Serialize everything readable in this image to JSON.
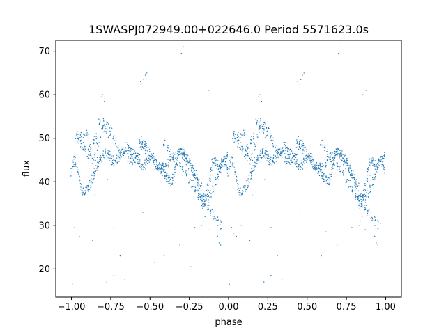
{
  "chart_data": {
    "type": "scatter",
    "title": "1SWASPJ072949.00+022646.0 Period 5571623.0s",
    "xlabel": "phase",
    "ylabel": "flux",
    "xlim": [
      -1.1,
      1.1
    ],
    "ylim": [
      13.5,
      72.5
    ],
    "xticks": [
      -1.0,
      -0.75,
      -0.5,
      -0.25,
      0.0,
      0.25,
      0.5,
      0.75,
      1.0
    ],
    "xtick_labels": [
      "−1.00",
      "−0.75",
      "−0.50",
      "−0.25",
      "0.00",
      "0.25",
      "0.50",
      "0.75",
      "1.00"
    ],
    "yticks": [
      20,
      30,
      40,
      50,
      60,
      70
    ],
    "ytick_labels": [
      "20",
      "30",
      "40",
      "50",
      "60",
      "70"
    ],
    "grid": false,
    "legend": "none",
    "marker_color": "#1f77b4",
    "series": [
      {
        "period_repeat": true,
        "x": [
          0.0,
          0.01,
          0.02,
          0.03,
          0.04,
          0.05,
          0.06,
          0.07,
          0.08,
          0.09,
          0.1,
          0.11,
          0.12,
          0.13,
          0.14,
          0.15,
          0.16,
          0.17,
          0.18,
          0.19,
          0.2,
          0.21,
          0.22,
          0.23,
          0.24,
          0.25,
          0.26,
          0.27,
          0.28,
          0.29,
          0.3,
          0.31,
          0.32,
          0.33,
          0.34,
          0.35,
          0.36,
          0.37,
          0.38,
          0.39,
          0.4,
          0.41,
          0.42,
          0.43,
          0.44,
          0.45,
          0.46,
          0.47,
          0.48,
          0.49,
          0.5,
          0.51,
          0.52,
          0.53,
          0.54,
          0.55,
          0.56,
          0.57,
          0.58,
          0.59,
          0.6,
          0.61,
          0.62,
          0.63,
          0.64,
          0.65,
          0.66,
          0.67,
          0.68,
          0.69,
          0.7,
          0.71,
          0.72,
          0.73,
          0.74,
          0.75,
          0.76,
          0.77,
          0.78,
          0.79,
          0.8,
          0.81,
          0.82,
          0.83,
          0.84,
          0.85,
          0.86,
          0.87,
          0.88,
          0.89,
          0.9,
          0.91,
          0.92,
          0.93,
          0.94,
          0.95,
          0.96,
          0.97,
          0.98,
          0.99,
          0.03,
          0.045,
          0.06,
          0.075,
          0.09,
          0.105,
          0.12,
          0.135,
          0.15,
          0.165,
          0.18,
          0.195,
          0.21,
          0.225,
          0.24,
          0.255,
          0.27,
          0.285,
          0.3,
          0.315,
          0.33,
          0.345,
          0.36,
          0.375,
          0.39,
          0.405,
          0.42,
          0.435,
          0.45,
          0.465,
          0.48,
          0.495,
          0.51,
          0.525,
          0.54,
          0.555,
          0.57,
          0.585,
          0.6,
          0.615,
          0.63,
          0.645,
          0.66,
          0.675,
          0.69,
          0.705,
          0.72,
          0.735,
          0.75,
          0.765,
          0.78,
          0.795,
          0.81,
          0.825,
          0.84,
          0.855,
          0.87,
          0.885,
          0.9,
          0.915,
          0.93,
          0.945,
          0.96,
          0.975,
          0.99,
          0.04,
          0.06,
          0.08,
          0.1,
          0.12,
          0.14,
          0.16,
          0.18,
          0.2,
          0.22,
          0.24,
          0.44,
          0.455,
          0.47,
          0.59,
          0.61,
          0.63,
          0.65,
          0.67,
          0.69,
          0.71,
          0.73,
          0.75,
          0.77,
          0.79,
          0.81,
          0.83,
          0.85,
          0.87,
          0.89,
          0.91,
          0.93,
          0.95,
          0.02,
          0.05,
          0.08,
          0.15,
          0.19,
          0.2,
          0.21,
          0.23,
          0.27,
          0.31,
          0.34,
          0.44,
          0.45,
          0.46,
          0.47,
          0.48,
          0.53,
          0.59,
          0.62,
          0.69,
          0.76,
          0.83,
          0.84,
          0.85,
          0.87,
          0.9,
          0.93,
          0.94,
          0.95,
          0.97,
          0.005,
          0.035,
          0.135,
          0.225,
          0.27,
          0.455,
          0.545,
          0.7,
          0.715,
          0.785,
          0.855,
          0.875
        ],
        "y": [
          42.0,
          44.5,
          45.0,
          44.0,
          42.5,
          41.0,
          39.0,
          38.0,
          37.5,
          37.8,
          38.2,
          38.8,
          39.5,
          40.5,
          41.5,
          42.5,
          43.5,
          44.5,
          45.0,
          45.5,
          46.0,
          46.5,
          47.0,
          46.5,
          46.0,
          45.5,
          45.0,
          44.5,
          44.5,
          45.0,
          45.5,
          46.0,
          46.5,
          47.0,
          47.5,
          48.0,
          48.0,
          47.5,
          47.0,
          46.5,
          46.0,
          45.5,
          45.0,
          44.5,
          44.0,
          43.5,
          43.5,
          44.0,
          44.5,
          45.0,
          45.5,
          46.0,
          45.5,
          45.0,
          44.5,
          44.0,
          43.5,
          43.0,
          42.5,
          42.0,
          41.5,
          41.0,
          40.5,
          40.0,
          40.0,
          41.0,
          43.0,
          45.0,
          46.0,
          46.5,
          47.0,
          46.5,
          46.0,
          45.5,
          45.0,
          44.5,
          44.0,
          43.5,
          42.5,
          41.5,
          40.0,
          38.0,
          36.5,
          35.5,
          35.0,
          35.5,
          37.0,
          39.0,
          41.0,
          43.0,
          44.5,
          45.0,
          44.5,
          44.0,
          43.5,
          43.5,
          44.0,
          44.5,
          44.0,
          43.0,
          50.5,
          49.5,
          48.5,
          48.0,
          47.5,
          46.5,
          45.5,
          45.0,
          46.0,
          48.0,
          50.0,
          51.5,
          52.5,
          53.0,
          52.5,
          51.5,
          50.0,
          49.0,
          48.0,
          47.0,
          46.5,
          46.0,
          45.5,
          45.0,
          45.0,
          45.5,
          46.0,
          47.0,
          48.0,
          48.5,
          48.0,
          47.0,
          46.0,
          45.0,
          44.0,
          43.5,
          43.0,
          43.5,
          44.0,
          44.5,
          45.0,
          45.5,
          46.0,
          46.5,
          47.0,
          46.5,
          46.0,
          45.0,
          44.0,
          43.0,
          42.0,
          41.0,
          40.0,
          39.0,
          37.5,
          36.5,
          36.0,
          37.0,
          38.5,
          40.0,
          41.5,
          43.0,
          44.5,
          45.5,
          46.0,
          50.0,
          51.0,
          50.5,
          51.5,
          48.0,
          49.5,
          50.5,
          54.0,
          53.5,
          52.0,
          50.5,
          49.5,
          48.5,
          47.5,
          48.5,
          47.5,
          46.5,
          45.5,
          44.5,
          43.5,
          42.5,
          41.5,
          40.5,
          39.5,
          38.5,
          37.0,
          36.0,
          35.0,
          34.0,
          33.0,
          32.0,
          31.0,
          30.0,
          29.5,
          27.5,
          30.0,
          37.0,
          59.5,
          60.0,
          58.5,
          40.5,
          29.5,
          23.0,
          17.5,
          63.0,
          62.5,
          63.5,
          64.5,
          65.0,
          21.5,
          23.0,
          28.5,
          25.5,
          20.5,
          30.0,
          31.0,
          32.0,
          29.0,
          41.5,
          27.5,
          26.0,
          25.5,
          30.5,
          16.5,
          28.0,
          26.5,
          17.0,
          18.5,
          33.0,
          20.0,
          69.5,
          71.0,
          29.5,
          60.0,
          61.0
        ]
      }
    ]
  }
}
